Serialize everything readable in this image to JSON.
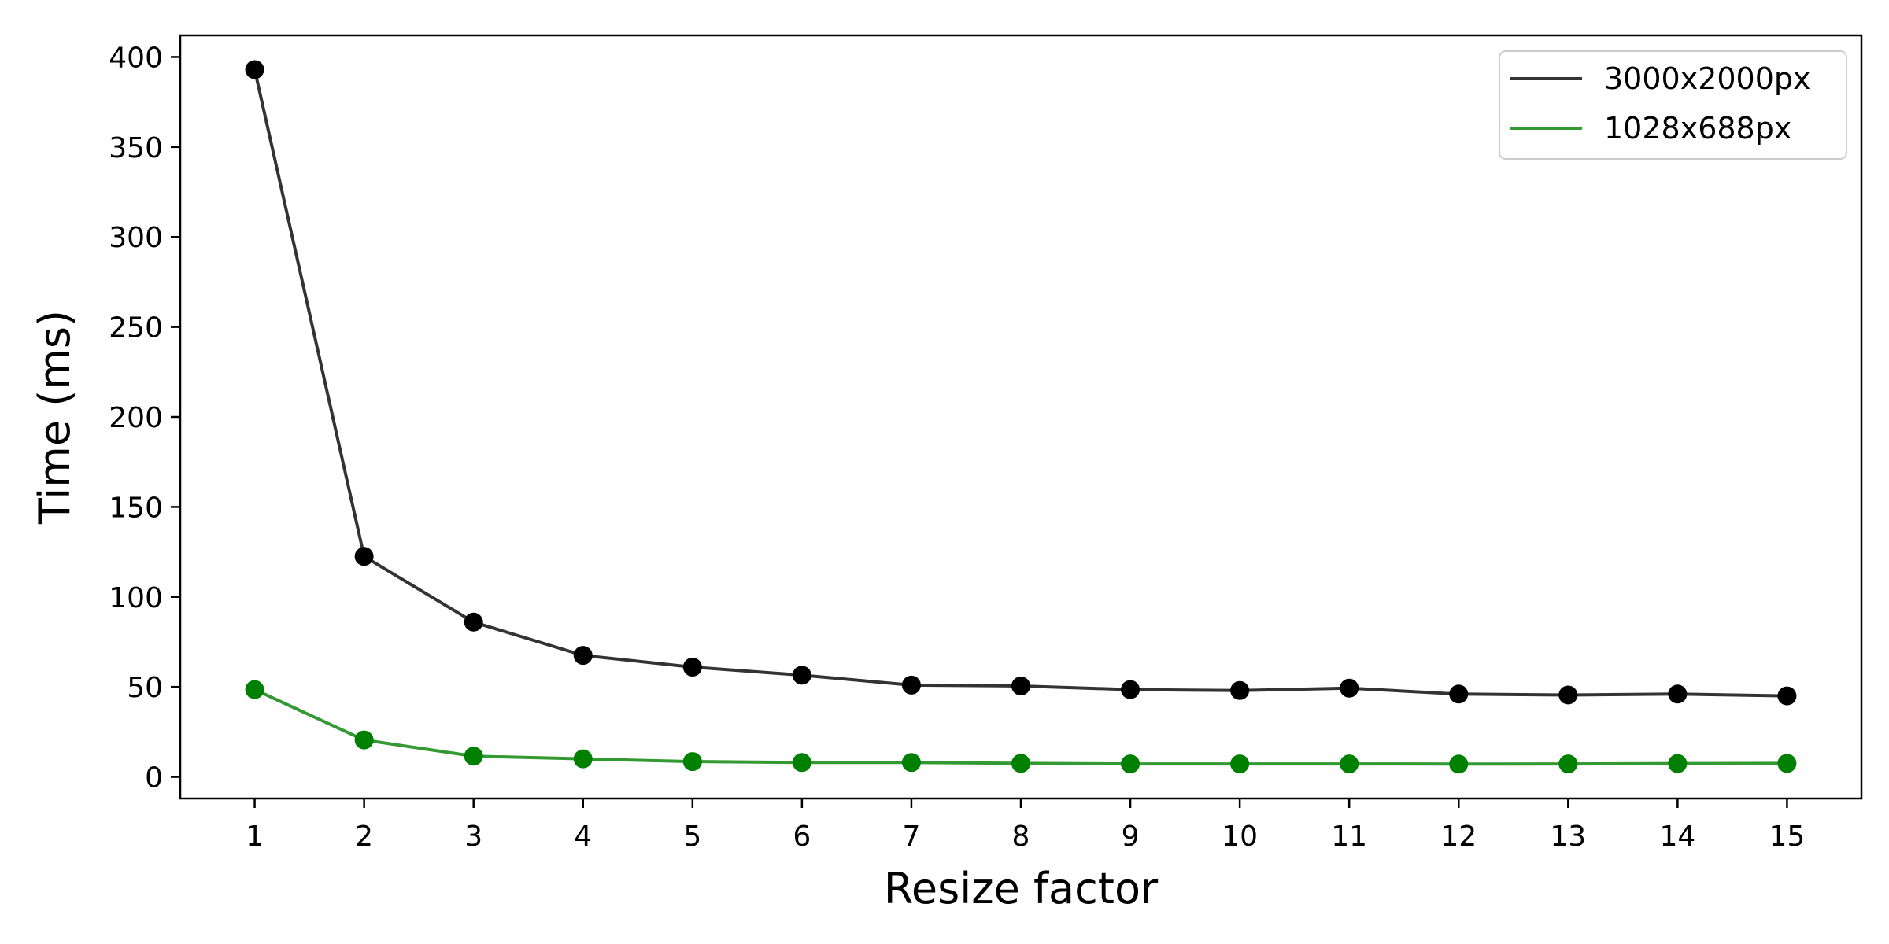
{
  "chart_data": {
    "type": "line",
    "title": "",
    "xlabel": "Resize factor",
    "ylabel": "Time (ms)",
    "x": [
      1,
      2,
      3,
      4,
      5,
      6,
      7,
      8,
      9,
      10,
      11,
      12,
      13,
      14,
      15
    ],
    "xlim": [
      0.32,
      15.68
    ],
    "ylim": [
      -12,
      412
    ],
    "yticks": [
      0,
      50,
      100,
      150,
      200,
      250,
      300,
      350,
      400
    ],
    "xticks": [
      1,
      2,
      3,
      4,
      5,
      6,
      7,
      8,
      9,
      10,
      11,
      12,
      13,
      14,
      15
    ],
    "grid": false,
    "legend_position": "top-right",
    "series": [
      {
        "name": "3000x2000px",
        "line_color": "#333333",
        "marker_color": "#000000",
        "values": [
          393,
          122.5,
          86,
          67.5,
          61,
          56.5,
          51,
          50.5,
          48.5,
          48,
          49.3,
          46,
          45.5,
          46,
          45
        ]
      },
      {
        "name": "1028x688px",
        "line_color": "#339933",
        "marker_color": "#008000",
        "values": [
          48.5,
          20.5,
          11.5,
          10,
          8.5,
          8,
          8,
          7.5,
          7.2,
          7.2,
          7.2,
          7.1,
          7.2,
          7.4,
          7.5
        ]
      }
    ]
  }
}
